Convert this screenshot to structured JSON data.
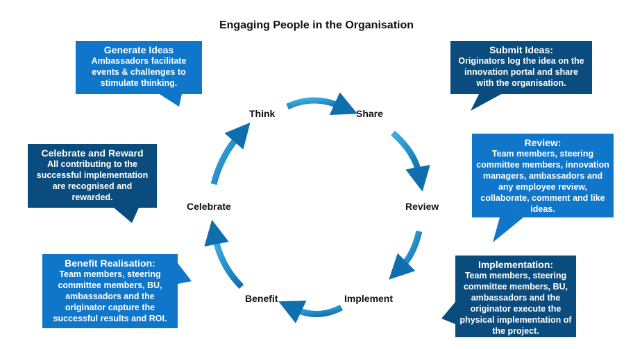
{
  "title": "Engaging People in the Organisation",
  "stages": {
    "think": "Think",
    "share": "Share",
    "review": "Review",
    "implement": "Implement",
    "benefit": "Benefit",
    "celebrate": "Celebrate"
  },
  "callouts": {
    "generate": {
      "title": "Generate Ideas",
      "body": "Ambassadors facilitate events & challenges to stimulate thinking."
    },
    "submit": {
      "title": "Submit Ideas:",
      "body": "Originators log the idea on the innovation portal and share with the organisation."
    },
    "review": {
      "title": "Review:",
      "body": "Team members, steering committee members, innovation managers, ambassadors and any employee  review, collaborate, comment and like ideas."
    },
    "implementation": {
      "title": "Implementation:",
      "body": "Team members, steering committee members, BU, ambassadors and the originator   execute the physical implementation of the project."
    },
    "benefit": {
      "title": "Benefit Realisation:",
      "body": "Team members, steering committee members, BU, ambassadors and the originator   capture the successful results and ROI."
    },
    "celebrate": {
      "title": "Celebrate and Reward",
      "body": "All contributing to the successful implementation are recognised and rewarded."
    }
  },
  "colors": {
    "light_box": "#0f76c9",
    "dark_box": "#0a4c7e",
    "arrow_light": "#2ea0d9",
    "arrow_dark": "#0f6fae"
  }
}
